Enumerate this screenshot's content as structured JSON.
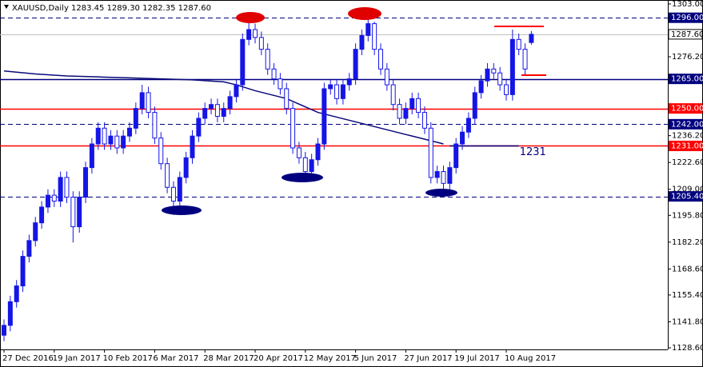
{
  "chart_data": {
    "type": "candlestick",
    "title": "XAUUSD,Daily  1283.45 1289.30 1282.35 1287.60",
    "categories": [
      "27 Dec 2016",
      null,
      null,
      null,
      null,
      null,
      null,
      null,
      "19 Jan 2017",
      null,
      null,
      null,
      null,
      null,
      null,
      null,
      "10 Feb 2017",
      null,
      null,
      null,
      null,
      null,
      null,
      null,
      "6 Mar 2017",
      null,
      null,
      null,
      null,
      null,
      null,
      null,
      "28 Mar 2017",
      null,
      null,
      null,
      null,
      null,
      null,
      null,
      "20 Apr 2017",
      null,
      null,
      null,
      null,
      null,
      null,
      null,
      "12 May 2017",
      null,
      null,
      null,
      null,
      null,
      null,
      null,
      "5 Jun 2017",
      null,
      null,
      null,
      null,
      null,
      null,
      null,
      "27 Jun 2017",
      null,
      null,
      null,
      null,
      null,
      null,
      null,
      "19 Jul 2017",
      null,
      null,
      null,
      null,
      null,
      null,
      null,
      "10 Aug 2017",
      null,
      null,
      null,
      null
    ],
    "open": [
      1135,
      1140,
      1152,
      1160,
      1175,
      1183,
      1192,
      1200,
      1206,
      1203,
      1215,
      1205,
      1190,
      1205,
      1220,
      1232,
      1240,
      1232,
      1236,
      1230,
      1236,
      1240,
      1250,
      1258,
      1248,
      1235,
      1222,
      1210,
      1203,
      1215,
      1225,
      1236,
      1245,
      1250,
      1252,
      1246,
      1250,
      1256,
      1262,
      1285,
      1290,
      1286,
      1280,
      1270,
      1265,
      1260,
      1250,
      1230,
      1225,
      1218,
      1224,
      1232,
      1260,
      1262,
      1255,
      1262,
      1265,
      1280,
      1287,
      1293,
      1280,
      1270,
      1262,
      1252,
      1245,
      1250,
      1255,
      1248,
      1240,
      1215,
      1218,
      1212,
      1220,
      1232,
      1238,
      1245,
      1258,
      1264,
      1270,
      1268,
      1262,
      1257,
      1285,
      1280,
      1283.45
    ],
    "high": [
      1143,
      1155,
      1163,
      1178,
      1186,
      1195,
      1203,
      1209,
      1209,
      1218,
      1218,
      1208,
      1208,
      1223,
      1235,
      1243,
      1243,
      1239,
      1239,
      1239,
      1243,
      1253,
      1262,
      1261,
      1251,
      1238,
      1225,
      1213,
      1218,
      1228,
      1239,
      1248,
      1253,
      1255,
      1255,
      1253,
      1259,
      1265,
      1288,
      1296,
      1293,
      1289,
      1283,
      1273,
      1268,
      1263,
      1253,
      1233,
      1228,
      1227,
      1235,
      1263,
      1265,
      1265,
      1265,
      1268,
      1283,
      1290,
      1296,
      1294,
      1283,
      1273,
      1265,
      1255,
      1253,
      1258,
      1258,
      1251,
      1243,
      1221,
      1221,
      1223,
      1235,
      1241,
      1248,
      1261,
      1267,
      1273,
      1273,
      1271,
      1265,
      1290,
      1288,
      1283,
      1289.3
    ],
    "low": [
      1132,
      1137,
      1149,
      1157,
      1172,
      1180,
      1189,
      1197,
      1200,
      1200,
      1202,
      1182,
      1187,
      1202,
      1217,
      1229,
      1229,
      1229,
      1227,
      1227,
      1233,
      1237,
      1247,
      1245,
      1232,
      1219,
      1207,
      1196,
      1200,
      1212,
      1222,
      1233,
      1242,
      1247,
      1243,
      1243,
      1247,
      1253,
      1259,
      1282,
      1283,
      1277,
      1267,
      1262,
      1257,
      1247,
      1227,
      1222,
      1214,
      1215,
      1221,
      1229,
      1257,
      1252,
      1252,
      1259,
      1262,
      1277,
      1284,
      1277,
      1267,
      1259,
      1249,
      1242,
      1242,
      1247,
      1245,
      1237,
      1212,
      1212,
      1207,
      1209,
      1217,
      1229,
      1235,
      1242,
      1255,
      1261,
      1265,
      1259,
      1254,
      1254,
      1277,
      1267,
      1282.35
    ],
    "close": [
      1140,
      1152,
      1160,
      1175,
      1183,
      1192,
      1200,
      1206,
      1203,
      1215,
      1205,
      1190,
      1205,
      1220,
      1232,
      1240,
      1232,
      1236,
      1230,
      1236,
      1240,
      1250,
      1258,
      1248,
      1235,
      1222,
      1210,
      1203,
      1215,
      1225,
      1236,
      1245,
      1250,
      1252,
      1246,
      1250,
      1256,
      1262,
      1285,
      1290,
      1286,
      1280,
      1270,
      1265,
      1260,
      1250,
      1230,
      1225,
      1218,
      1224,
      1232,
      1260,
      1262,
      1255,
      1262,
      1265,
      1280,
      1287,
      1293,
      1280,
      1270,
      1262,
      1252,
      1245,
      1250,
      1255,
      1248,
      1240,
      1215,
      1218,
      1212,
      1220,
      1232,
      1238,
      1245,
      1258,
      1264,
      1270,
      1268,
      1262,
      1257,
      1285,
      1280,
      1270,
      1287.6
    ],
    "up_color": "#1515e6",
    "down_color": "#ffffff",
    "wick_color": "#1515e6",
    "ma": {
      "x": [
        0,
        5,
        10,
        15,
        20,
        25,
        30,
        35,
        37,
        40,
        45,
        50,
        55,
        60,
        65,
        70
      ],
      "values": [
        1269,
        1267.5,
        1266.5,
        1266,
        1265.5,
        1265,
        1264.5,
        1263.5,
        1262,
        1259,
        1255,
        1248,
        1244,
        1240,
        1236,
        1232
      ],
      "color": "#0a0a7a"
    },
    "levels": [
      {
        "value": 1296,
        "label": "1296.00",
        "color": "#00007f",
        "style": "dashed",
        "text_color": "#ffffff"
      },
      {
        "value": 1287.6,
        "label": "1287.60",
        "color": "#c0c0c0",
        "style": "solid",
        "text_color": "#000000"
      },
      {
        "value": 1265,
        "label": "1265.00",
        "color": "#00007f",
        "style": "solid",
        "text_color": "#ffffff"
      },
      {
        "value": 1250,
        "label": "1250.00",
        "color": "#ff0000",
        "style": "solid",
        "text_color": "#ffffff"
      },
      {
        "value": 1242,
        "label": "1242.00",
        "color": "#00007f",
        "style": "dashed",
        "text_color": "#ffffff"
      },
      {
        "value": 1231,
        "label": "1231.00",
        "color": "#ff0000",
        "style": "solid",
        "text_color": "#ffffff"
      },
      {
        "value": 1205.4,
        "label": "1205.40",
        "color": "#00007f",
        "style": "dashed",
        "text_color": "#ffffff"
      }
    ],
    "trendline": {
      "value": 1231,
      "label": "1231",
      "from": 71,
      "to": 82,
      "color": "#00007f"
    },
    "ylim": [
      1127.8,
      1305
    ],
    "yticks": [
      {
        "value": 1303,
        "label": "1303.00"
      },
      {
        "value": 1276.2,
        "label": "1276.20"
      },
      {
        "value": 1236.2,
        "label": "1236.20"
      },
      {
        "value": 1222.6,
        "label": "1222.60"
      },
      {
        "value": 1209,
        "label": "1209.00"
      },
      {
        "value": 1195.8,
        "label": "1195.80"
      },
      {
        "value": 1182.2,
        "label": "1182.20"
      },
      {
        "value": 1168.6,
        "label": "1168.60"
      },
      {
        "value": 1155.4,
        "label": "1155.40"
      },
      {
        "value": 1141.8,
        "label": "1141.80"
      },
      {
        "value": 1128.6,
        "label": "1128.60"
      }
    ]
  }
}
